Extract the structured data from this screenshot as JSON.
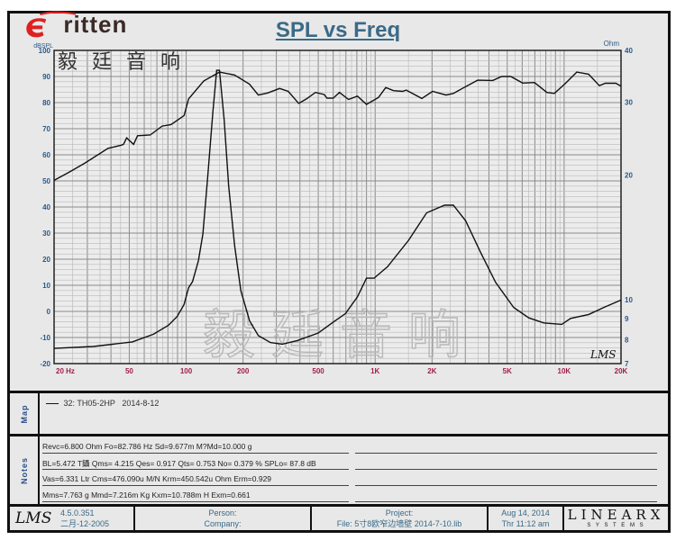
{
  "logo": {
    "brand": "Eritten",
    "cn": "毅廷音响"
  },
  "watermark": "毅廷音响",
  "colors": {
    "axis_left": "#2a5a8a",
    "axis_x": "#a0204a",
    "title": "#3b6a88",
    "curve": "#111111",
    "grid": "#9a9a9a",
    "logo_red": "#e02020"
  },
  "chart_data": {
    "type": "line",
    "title": "SPL vs Freq",
    "xscale": "log",
    "xlim": [
      20,
      20000
    ],
    "x_ticks": [
      {
        "v": 20,
        "label": "20  Hz"
      },
      {
        "v": 50,
        "label": "50"
      },
      {
        "v": 100,
        "label": "100"
      },
      {
        "v": 200,
        "label": "200"
      },
      {
        "v": 500,
        "label": "500"
      },
      {
        "v": 1000,
        "label": "1K"
      },
      {
        "v": 2000,
        "label": "2K"
      },
      {
        "v": 5000,
        "label": "5K"
      },
      {
        "v": 10000,
        "label": "10K"
      },
      {
        "v": 20000,
        "label": "20K"
      }
    ],
    "ylabel": "dBSPL",
    "ylim": [
      -20,
      100
    ],
    "y_ticks": [
      100,
      90,
      80,
      70,
      60,
      50,
      40,
      30,
      20,
      10,
      0,
      -10,
      -20
    ],
    "y2label": "Ohm",
    "y2scale": "log",
    "y2lim": [
      7,
      40
    ],
    "y2_ticks": [
      40,
      30,
      20,
      10,
      9,
      8,
      7
    ],
    "grid": true,
    "corner_mark": "LMS",
    "series": [
      {
        "axis": "left",
        "points": [
          [
            20,
            50.2
          ],
          [
            24,
            53.3
          ],
          [
            28.9,
            56.7
          ],
          [
            38.6,
            62.5
          ],
          [
            44.9,
            63.6
          ],
          [
            46.6,
            64
          ],
          [
            48.4,
            66.5
          ],
          [
            52.7,
            64
          ],
          [
            55.3,
            67.3
          ],
          [
            64.5,
            67.6
          ],
          [
            74.6,
            71
          ],
          [
            83.1,
            71.6
          ],
          [
            97.5,
            75
          ],
          [
            103,
            81.4
          ],
          [
            124,
            88.3
          ],
          [
            150,
            91.7
          ],
          [
            180,
            90.6
          ],
          [
            216,
            87.1
          ],
          [
            241,
            82.9
          ],
          [
            270,
            83.7
          ],
          [
            312,
            85.4
          ],
          [
            347,
            84.3
          ],
          [
            394,
            79.7
          ],
          [
            433,
            81.4
          ],
          [
            483,
            83.9
          ],
          [
            537,
            83.1
          ],
          [
            556,
            81.7
          ],
          [
            600,
            81.7
          ],
          [
            647,
            83.9
          ],
          [
            723,
            81.2
          ],
          [
            806,
            82.5
          ],
          [
            900,
            79.3
          ],
          [
            1042,
            82
          ],
          [
            1138,
            85.8
          ],
          [
            1250,
            84.6
          ],
          [
            1396,
            84.3
          ],
          [
            1460,
            84.8
          ],
          [
            1766,
            81.6
          ],
          [
            2013,
            84.3
          ],
          [
            2374,
            82.9
          ],
          [
            2594,
            83.5
          ],
          [
            2893,
            85.4
          ],
          [
            3485,
            88.6
          ],
          [
            4190,
            88.5
          ],
          [
            4674,
            90
          ],
          [
            5218,
            90
          ],
          [
            6035,
            87.5
          ],
          [
            6970,
            87.7
          ],
          [
            8100,
            83.9
          ],
          [
            8870,
            83.5
          ],
          [
            10080,
            87.1
          ],
          [
            11670,
            91.7
          ],
          [
            13470,
            90.9
          ],
          [
            15360,
            86.5
          ],
          [
            16520,
            87.4
          ],
          [
            18760,
            87.4
          ],
          [
            20000,
            86.3
          ]
        ]
      },
      {
        "axis": "right",
        "points": [
          [
            20,
            7.62
          ],
          [
            32.2,
            7.7
          ],
          [
            51.9,
            7.9
          ],
          [
            67.1,
            8.24
          ],
          [
            80.5,
            8.66
          ],
          [
            89.6,
            9.1
          ],
          [
            97.5,
            9.73
          ],
          [
            103,
            10.67
          ],
          [
            108,
            11.05
          ],
          [
            116,
            12.4
          ],
          [
            122.6,
            14.4
          ],
          [
            129.6,
            19.5
          ],
          [
            138.7,
            28.6
          ],
          [
            145,
            35.8
          ],
          [
            150,
            35.8
          ],
          [
            158.8,
            27.2
          ],
          [
            167.8,
            18.8
          ],
          [
            180.5,
            13.5
          ],
          [
            194.6,
            10.5
          ],
          [
            216.5,
            8.88
          ],
          [
            241,
            8.18
          ],
          [
            279,
            7.87
          ],
          [
            323,
            7.8
          ],
          [
            389,
            7.96
          ],
          [
            500,
            8.3
          ],
          [
            600,
            8.82
          ],
          [
            697,
            9.25
          ],
          [
            806,
            10.15
          ],
          [
            900,
            11.26
          ],
          [
            987,
            11.26
          ],
          [
            1162,
            12.0
          ],
          [
            1503,
            13.9
          ],
          [
            1871,
            16.2
          ],
          [
            2330,
            16.9
          ],
          [
            2594,
            16.9
          ],
          [
            3010,
            15.5
          ],
          [
            3614,
            13.0
          ],
          [
            4340,
            11.0
          ],
          [
            5410,
            9.57
          ],
          [
            6500,
            9.03
          ],
          [
            7800,
            8.78
          ],
          [
            9710,
            8.71
          ],
          [
            10830,
            9.0
          ],
          [
            13500,
            9.2
          ],
          [
            16220,
            9.57
          ],
          [
            20000,
            9.97
          ]
        ]
      }
    ]
  },
  "map": {
    "label": "Map",
    "entry_prefix": "32: TH05-2HP",
    "entry_date": "2014-8-12"
  },
  "notes": {
    "label": "Notes",
    "lines": [
      "Revc=6.800 Ohm  Fo=82.786 Hz  Sd=9.677m  M?Md=10.000 g",
      "BL=5.472 T鑷  Qms= 4.215  Qes= 0.917  Qts= 0.753  No= 0.379 %  SPLo= 87.8 dB",
      "Vas=6.331 Ltr  Cms=476.090u M/N  Krm=450.542u Ohm  Erm=0.929",
      "Mms=7.763 g  Mmd=7.216m Kg  Kxm=10.788m H  Exm=0.661"
    ]
  },
  "footer": {
    "lms": "LMS",
    "version": "4.5.0.351",
    "build_date": "二月-12-2005",
    "person": "Person:",
    "company": "Company:",
    "project": "Project:",
    "file": "File: 5寸8欧窄边墙壁   2014-7-10.lib",
    "date": "Aug 14, 2014",
    "time": "Thr 11:12 am",
    "brand": "LINEARX",
    "brand_sub": "S Y S T E M S"
  }
}
